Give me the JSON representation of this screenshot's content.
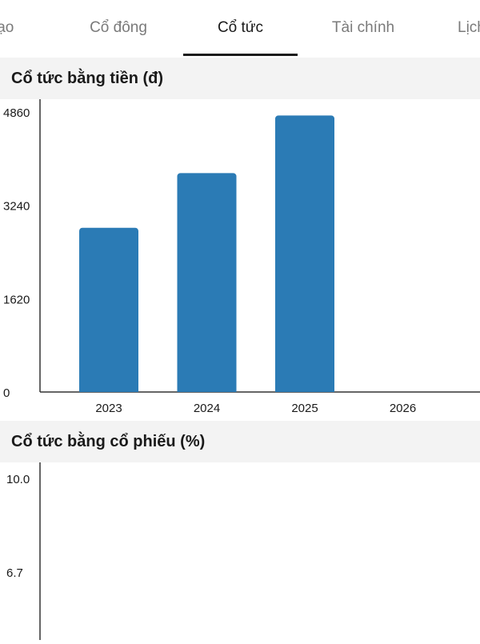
{
  "tabs": [
    {
      "label": "Tạo",
      "active": false
    },
    {
      "label": "Cổ đông",
      "active": false
    },
    {
      "label": "Cổ tức",
      "active": true
    },
    {
      "label": "Tài chính",
      "active": false
    },
    {
      "label": "Lịch",
      "active": false
    }
  ],
  "sections": {
    "cash": {
      "title": "Cổ tức bằng tiền (đ)"
    },
    "stock": {
      "title": "Cổ tức bằng cổ phiếu (%)"
    }
  },
  "colors": {
    "bar": "#2b7bb5",
    "axis": "#333333"
  },
  "chart_data": [
    {
      "type": "bar",
      "categories": [
        "2023",
        "2024",
        "2025",
        "2026"
      ],
      "values": [
        2850,
        3800,
        4800,
        null
      ],
      "ylim": [
        0,
        4860
      ],
      "yticks": [
        "0",
        "1620",
        "3240",
        "4860"
      ],
      "grid": false
    },
    {
      "type": "bar",
      "categories": [],
      "values": [],
      "ylim": [
        0,
        10.0
      ],
      "yticks": [
        "6.7",
        "10.0"
      ],
      "grid": false
    }
  ]
}
